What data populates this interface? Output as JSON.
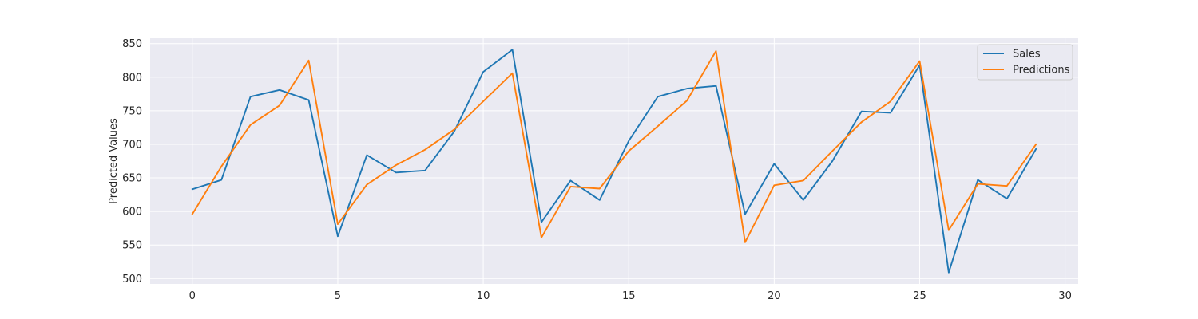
{
  "chart_data": {
    "type": "line",
    "title": "",
    "xlabel": "",
    "ylabel": "Predicted Values",
    "xlim": [
      -1.45,
      30.45
    ],
    "ylim": [
      492,
      858
    ],
    "x_ticks": [
      0,
      5,
      10,
      15,
      20,
      25,
      30
    ],
    "y_ticks": [
      500,
      550,
      600,
      650,
      700,
      750,
      800,
      850
    ],
    "grid": true,
    "legend_position": "top-right",
    "x": [
      0,
      1,
      2,
      3,
      4,
      5,
      6,
      7,
      8,
      9,
      10,
      11,
      12,
      13,
      14,
      15,
      16,
      17,
      18,
      19,
      20,
      21,
      22,
      23,
      24,
      25,
      26,
      27,
      28,
      29
    ],
    "series": [
      {
        "name": "Sales",
        "color": "#1f77b4",
        "values": [
          633,
          647,
          771,
          781,
          766,
          563,
          684,
          658,
          661,
          719,
          808,
          841,
          584,
          646,
          617,
          705,
          771,
          783,
          787,
          596,
          671,
          617,
          675,
          749,
          747,
          818,
          509,
          647,
          619,
          693
        ]
      },
      {
        "name": "Predictions",
        "color": "#ff7f0e",
        "values": [
          596,
          667,
          729,
          758,
          825,
          581,
          640,
          669,
          692,
          722,
          764,
          806,
          561,
          637,
          634,
          690,
          727,
          765,
          839,
          554,
          639,
          646,
          690,
          733,
          764,
          824,
          572,
          641,
          638,
          700
        ]
      }
    ]
  }
}
